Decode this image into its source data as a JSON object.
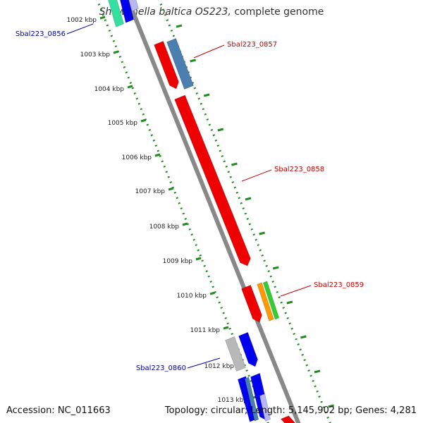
{
  "title": {
    "organism": "Shewanella baltica OS223,",
    "suffix": "complete genome"
  },
  "footer": {
    "accession": "Accession: NC_011663",
    "summary": "Topology: circular; Length: 5,145,902 bp; Genes: 4,281"
  },
  "colors": {
    "backbone": "#888888",
    "forward_label": "#cc0000",
    "reverse_label": "#0000aa",
    "tick": "#228b22",
    "tick_label": "#222222"
  },
  "ticks": [
    "1002 kbp",
    "1003 kbp",
    "1004 kbp",
    "1005 kbp",
    "1006 kbp",
    "1007 kbp",
    "1008 kbp",
    "1009 kbp",
    "1010 kbp",
    "1011 kbp",
    "1012 kbp",
    "1013 kbp"
  ],
  "genes": [
    {
      "label": "Sbal223_0856",
      "strand": "reverse"
    },
    {
      "label": "Sbal223_0857",
      "strand": "forward"
    },
    {
      "label": "Sbal223_0858",
      "strand": "forward"
    },
    {
      "label": "Sbal223_0859",
      "strand": "forward"
    },
    {
      "label": "Sbal223_0860",
      "strand": "reverse"
    }
  ]
}
